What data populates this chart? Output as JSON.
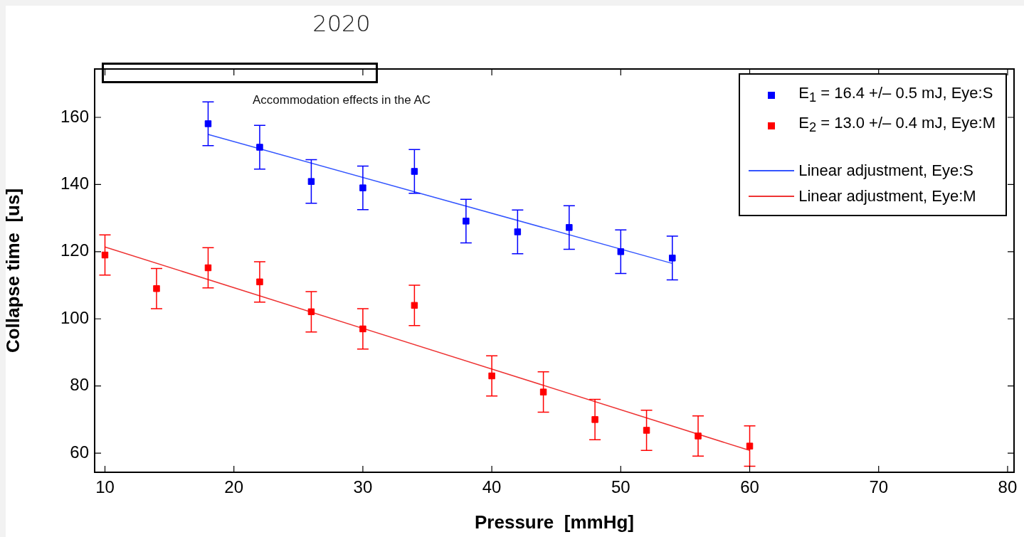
{
  "chart_data": {
    "type": "scatter",
    "title": "2020",
    "xlabel": "Pressure  [mmHg]",
    "ylabel": "Collapse time  [us]",
    "xlim": [
      9.2,
      80.5
    ],
    "xticks": [
      10,
      20,
      30,
      40,
      50,
      60,
      70,
      80
    ],
    "ylim": [
      54.3,
      174.4
    ],
    "yticks": [
      60,
      80,
      100,
      120,
      140,
      160
    ],
    "legend": "top right",
    "grid": false,
    "annotations": [
      "Accommodation effects in the AC"
    ],
    "series": [
      {
        "name": "E$_{1}$ = 16.4 +/– 0.5 mJ, Eye:S",
        "color": "#0000ff",
        "marker": "square",
        "x": [
          18,
          22,
          26,
          30,
          34,
          38,
          42,
          46,
          50,
          54
        ],
        "values": [
          158.1,
          151.1,
          140.9,
          139,
          143.9,
          129.1,
          125.9,
          127.2,
          120,
          118.1
        ],
        "errors": [
          6.5,
          6.5,
          6.5,
          6.5,
          6.5,
          6.5,
          6.5,
          6.5,
          6.5,
          6.5
        ]
      },
      {
        "name": "E$_{2}$ = 13.0 +/– 0.4 mJ, Eye:M",
        "color": "#ff0000",
        "marker": "square",
        "x": [
          10,
          14,
          18,
          22,
          26,
          30,
          34,
          40,
          44,
          48,
          52,
          56,
          60
        ],
        "values": [
          119,
          109,
          115.2,
          111,
          102.1,
          97,
          104,
          83,
          78.2,
          70,
          66.8,
          65.1,
          62.1
        ],
        "errors": [
          6,
          6,
          6,
          6,
          6,
          6,
          6,
          6,
          6,
          6,
          6,
          6,
          6
        ]
      },
      {
        "name": "Linear adjustment, Eye:S",
        "type": "line",
        "color": "#3355ff",
        "x": [
          18,
          54
        ],
        "values": [
          154.9,
          116.5
        ]
      },
      {
        "name": "Linear adjustment, Eye:M",
        "type": "line",
        "color": "#ee3333",
        "x": [
          10,
          60
        ],
        "values": [
          121.4,
          60.8
        ]
      }
    ]
  }
}
